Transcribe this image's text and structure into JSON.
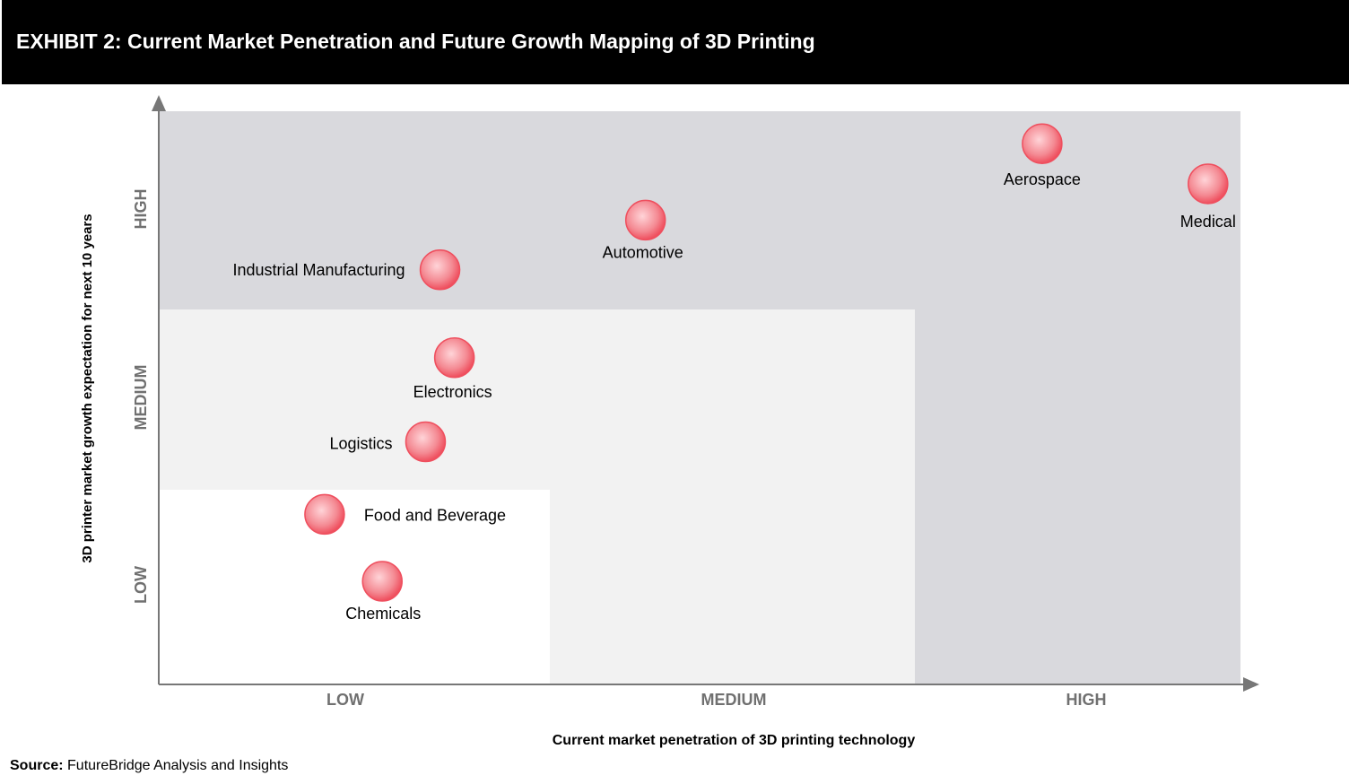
{
  "header": {
    "title": "EXHIBIT 2: Current Market Penetration and Future Growth Mapping of 3D Printing"
  },
  "source": {
    "label": "Source:",
    "text": "FutureBridge Analysis and Insights"
  },
  "colors": {
    "high_zone": "#d9d9dd",
    "medium_zone": "#f2f2f2",
    "low_zone": "#ffffff",
    "bubble": "#f48a93",
    "bubble_highlight": "#ffd4d8",
    "bubble_edge": "#ef4f5e",
    "axis": "#777777",
    "tick_text": "#707070"
  },
  "chart_data": {
    "type": "scatter",
    "title": "Current Market Penetration and Future Growth Mapping of 3D Printing",
    "xlabel": "Current market penetration of 3D printing technology",
    "ylabel": "3D printer market growth expectation for next 10 years",
    "x_categories": [
      "LOW",
      "MEDIUM",
      "HIGH"
    ],
    "y_categories": [
      "LOW",
      "MEDIUM",
      "HIGH"
    ],
    "xlim": [
      0,
      3
    ],
    "ylim": [
      0,
      3
    ],
    "grid": false,
    "legend": "none",
    "points": [
      {
        "label": "Aerospace",
        "x": 2.45,
        "y": 2.83
      },
      {
        "label": "Medical",
        "x": 2.91,
        "y": 2.62
      },
      {
        "label": "Automotive",
        "x": 1.35,
        "y": 2.43
      },
      {
        "label": "Industrial Manufacturing",
        "x": 0.78,
        "y": 2.17
      },
      {
        "label": "Electronics",
        "x": 0.82,
        "y": 1.71
      },
      {
        "label": "Logistics",
        "x": 0.74,
        "y": 1.27
      },
      {
        "label": "Food and Beverage",
        "x": 0.46,
        "y": 0.89
      },
      {
        "label": "Chemicals",
        "x": 0.62,
        "y": 0.54
      }
    ]
  }
}
